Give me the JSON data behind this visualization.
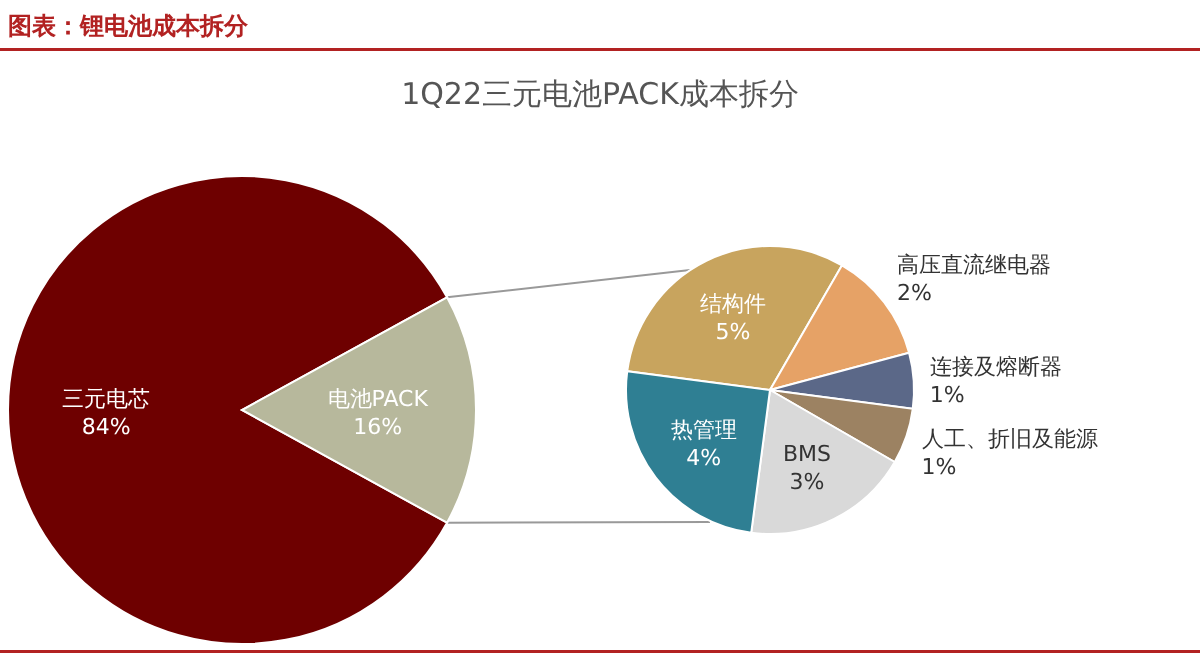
{
  "chart_data": [
    {
      "type": "pie",
      "title": "图表：锂电池成本拆分",
      "subtitle": "1Q22三元电池PACK成本拆分",
      "categories": [
        "三元电芯",
        "电池PACK"
      ],
      "values": [
        84,
        16
      ],
      "colors": [
        "#6e0000",
        "#b7b89c"
      ],
      "value_labels": [
        "84%",
        "16%"
      ]
    },
    {
      "type": "pie",
      "categories": [
        "结构件",
        "高压直流继电器",
        "连接及熔断器",
        "人工、折旧及能源",
        "BMS",
        "热管理"
      ],
      "values": [
        5,
        2,
        1,
        1,
        3,
        4
      ],
      "colors": [
        "#c8a45e",
        "#e6a266",
        "#5b6888",
        "#9c8262",
        "#d9d9d9",
        "#2f7f93"
      ],
      "value_labels": [
        "5%",
        "2%",
        "1%",
        "1%",
        "3%",
        "4%"
      ]
    }
  ]
}
